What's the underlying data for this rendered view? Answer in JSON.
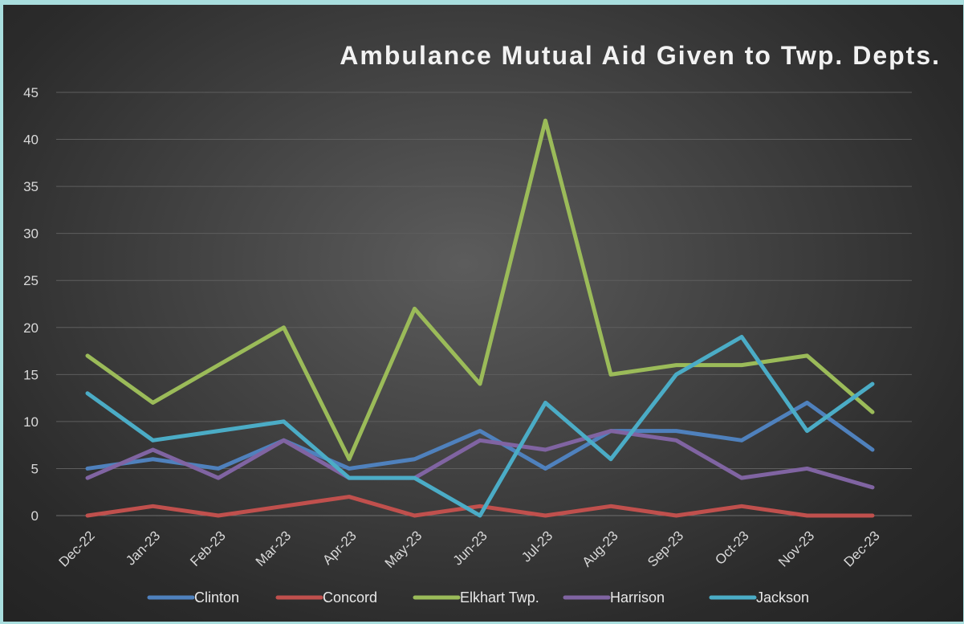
{
  "chart_data": {
    "type": "line",
    "title": "Ambulance Mutual Aid Given to Twp. Depts.",
    "categories": [
      "Dec-22",
      "Jan-23",
      "Feb-23",
      "Mar-23",
      "Apr-23",
      "May-23",
      "Jun-23",
      "Jul-23",
      "Aug-23",
      "Sep-23",
      "Oct-23",
      "Nov-23",
      "Dec-23"
    ],
    "ylim": [
      0,
      45
    ],
    "yticks": [
      "0",
      "5",
      "10",
      "15",
      "20",
      "25",
      "30",
      "35",
      "40",
      "45"
    ],
    "grid": true,
    "legend_position": "bottom",
    "series": [
      {
        "name": "Clinton",
        "color": "#4f81bd",
        "values": [
          5,
          6,
          5,
          8,
          5,
          6,
          9,
          5,
          9,
          9,
          8,
          12,
          7
        ]
      },
      {
        "name": "Concord",
        "color": "#c0504d",
        "values": [
          0,
          1,
          0,
          1,
          2,
          0,
          1,
          0,
          1,
          0,
          1,
          0,
          0
        ]
      },
      {
        "name": "Elkhart Twp.",
        "color": "#9bbb59",
        "values": [
          17,
          12,
          16,
          20,
          6,
          22,
          14,
          42,
          15,
          16,
          16,
          17,
          11
        ]
      },
      {
        "name": "Harrison",
        "color": "#8064a2",
        "values": [
          4,
          7,
          4,
          8,
          4,
          4,
          8,
          7,
          9,
          8,
          4,
          5,
          3
        ]
      },
      {
        "name": "Jackson",
        "color": "#4bacc6",
        "values": [
          13,
          8,
          9,
          10,
          4,
          4,
          0,
          12,
          6,
          15,
          19,
          9,
          14
        ]
      }
    ]
  }
}
